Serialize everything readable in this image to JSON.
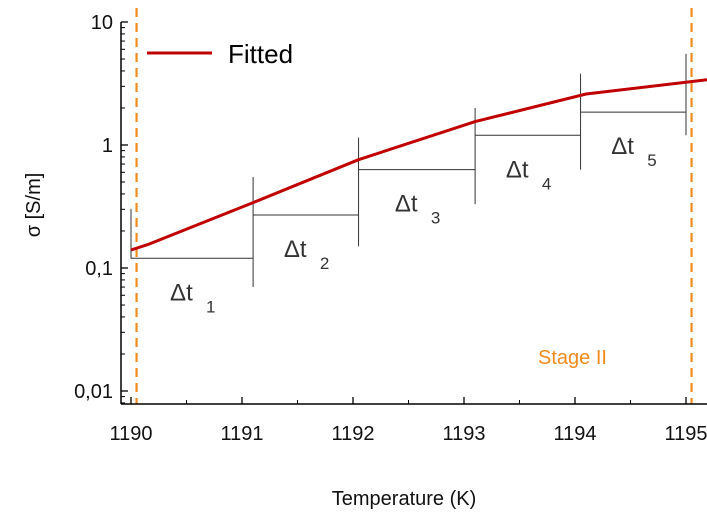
{
  "chart_data": {
    "type": "line",
    "xlabel": "Temperature (K)",
    "ylabel": "σ [S/m]",
    "xlim": [
      1190,
      1195.2
    ],
    "ylim": [
      0.005,
      10
    ],
    "yscale": "log",
    "x_ticks": [
      "1190",
      "1191",
      "1192",
      "1193",
      "1194",
      "1195"
    ],
    "x_tick_values": [
      1190,
      1191,
      1192,
      1193,
      1194,
      1195
    ],
    "y_ticks": [
      "0,01",
      "0,1",
      "1",
      "10"
    ],
    "y_tick_values": [
      0.01,
      0.1,
      1,
      10
    ],
    "legend": {
      "placement": "top-left",
      "label": "Fitted"
    },
    "series": [
      {
        "name": "Fitted",
        "color": "#c00000",
        "points": [
          [
            1190.0,
            0.14
          ],
          [
            1190.15,
            0.155
          ],
          [
            1191.1,
            0.34
          ],
          [
            1192.05,
            0.76
          ],
          [
            1193.1,
            1.55
          ],
          [
            1194.1,
            2.6
          ],
          [
            1195.2,
            3.4
          ]
        ]
      }
    ],
    "stage_lines": {
      "color": "#f28a1c",
      "x": [
        1190.05,
        1195.05
      ]
    },
    "stage_label": "Stage II",
    "intervals": [
      {
        "base": "Δt",
        "sub": "1",
        "x_start": 1190.0,
        "x_end": 1191.1,
        "y": 0.12,
        "tick_low": 0.07,
        "tick_high": 0.55
      },
      {
        "base": "Δt",
        "sub": "2",
        "x_start": 1191.1,
        "x_end": 1192.05,
        "y": 0.27,
        "tick_low": 0.15,
        "tick_high": 1.15
      },
      {
        "base": "Δt",
        "sub": "3",
        "x_start": 1192.05,
        "x_end": 1193.1,
        "y": 0.63,
        "tick_low": 0.33,
        "tick_high": 2.0
      },
      {
        "base": "Δt",
        "sub": "4",
        "x_start": 1193.1,
        "x_end": 1194.05,
        "y": 1.2,
        "tick_low": 0.63,
        "tick_high": 3.8
      },
      {
        "base": "Δt",
        "sub": "5",
        "x_start": 1194.05,
        "x_end": 1195.0,
        "y": 1.85,
        "tick_low": 1.2,
        "tick_high": 5.5
      }
    ]
  }
}
